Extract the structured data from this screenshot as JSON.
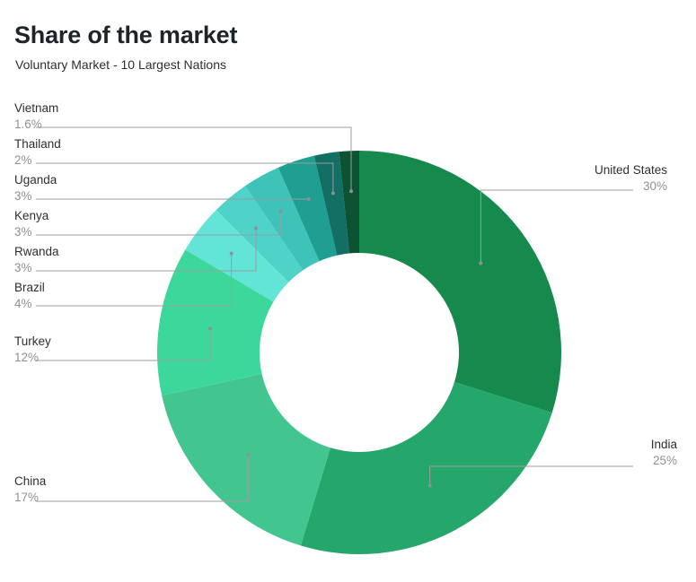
{
  "title": "Share of the market",
  "subtitle": "Voluntary Market - 10 Largest Nations",
  "chart_data": {
    "type": "pie",
    "title": "Share of the market",
    "subtitle": "Voluntary Market - 10 Largest Nations",
    "donut": true,
    "unit": "%",
    "slices": [
      {
        "label": "United States",
        "value": 30,
        "display": "30%",
        "color": "#168a4d"
      },
      {
        "label": "India",
        "value": 25,
        "display": "25%",
        "color": "#25a76b"
      },
      {
        "label": "China",
        "value": 17,
        "display": "17%",
        "color": "#42c58f"
      },
      {
        "label": "Turkey",
        "value": 12,
        "display": "12%",
        "color": "#3cd89b"
      },
      {
        "label": "Brazil",
        "value": 4,
        "display": "4%",
        "color": "#62e4d7"
      },
      {
        "label": "Rwanda",
        "value": 3,
        "display": "3%",
        "color": "#4fd3c8"
      },
      {
        "label": "Kenya",
        "value": 3,
        "display": "3%",
        "color": "#3fc2b8"
      },
      {
        "label": "Uganda",
        "value": 3,
        "display": "3%",
        "color": "#1f9e92"
      },
      {
        "label": "Thailand",
        "value": 2,
        "display": "2%",
        "color": "#136e63"
      },
      {
        "label": "Vietnam",
        "value": 1.6,
        "display": "1.6%",
        "color": "#0c5333"
      }
    ]
  }
}
